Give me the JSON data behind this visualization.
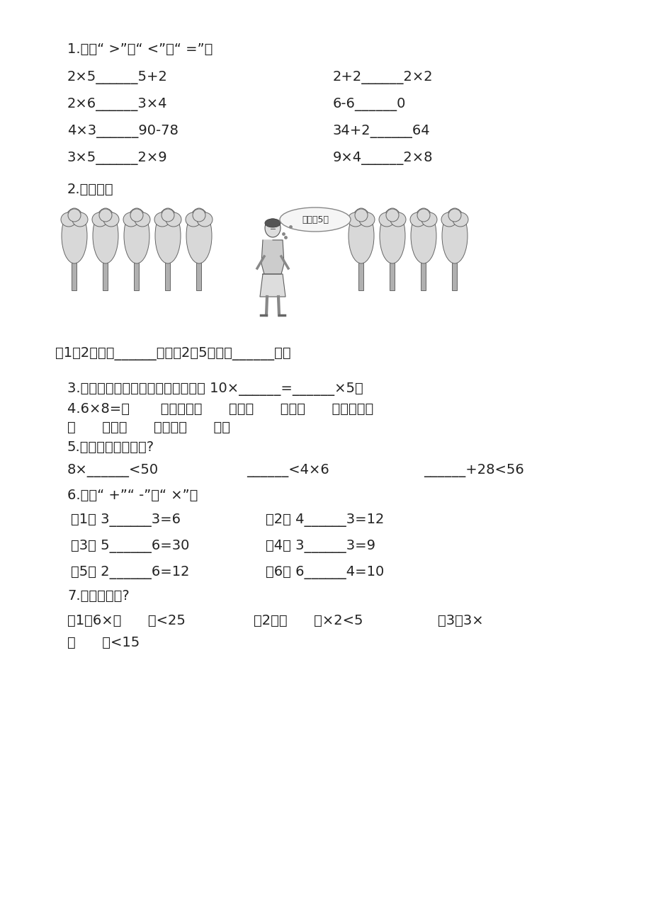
{
  "bg_color": "#ffffff",
  "text_color": "#222222",
  "title_q1": "1.填上“ >”、“ <”或“ =”。",
  "q1_col1": [
    "2×5______5+2",
    "2×6______3×4",
    "4×3______90-78",
    "3×5______2×9"
  ],
  "q1_col2": [
    "2+2______2×2",
    "6-6______0",
    "34+2______64",
    "9×4______2×8"
  ],
  "title_q2": "2.算一算。",
  "q2_caption": "（1）2个人浇______棵；（2）5个人浇______棵。",
  "bubble_text": "每人浇5棵",
  "title_q3": "3.把遮住的数找出来，并写在上面。 10×______=______×5。",
  "title_q4a": "4.6×8=（       ），表示（      ）个（      ）是（      ），也表示",
  "title_q4b": "（      ）的（      ）倍是（      ）。",
  "title_q5": "5.横线上最大能填几?",
  "q5_items": [
    "8×______<50",
    "______<4×6",
    "______+28<56"
  ],
  "title_q6": "6.填上“ +”“ -”或“ ×”。",
  "q6_col1": [
    "（1） 3______3=6",
    "（3） 5______6=30",
    "（5） 2______6=12"
  ],
  "q6_col2": [
    "（2） 4______3=12",
    "（4） 3______3=9",
    "（6） 6______4=10"
  ],
  "title_q7": "7.最大能填几?",
  "q7_line1": [
    "（1）6×（      ）<25",
    "（2）（      ）×2<5",
    "（3）3×"
  ],
  "q7_line2": "（      ）<15"
}
